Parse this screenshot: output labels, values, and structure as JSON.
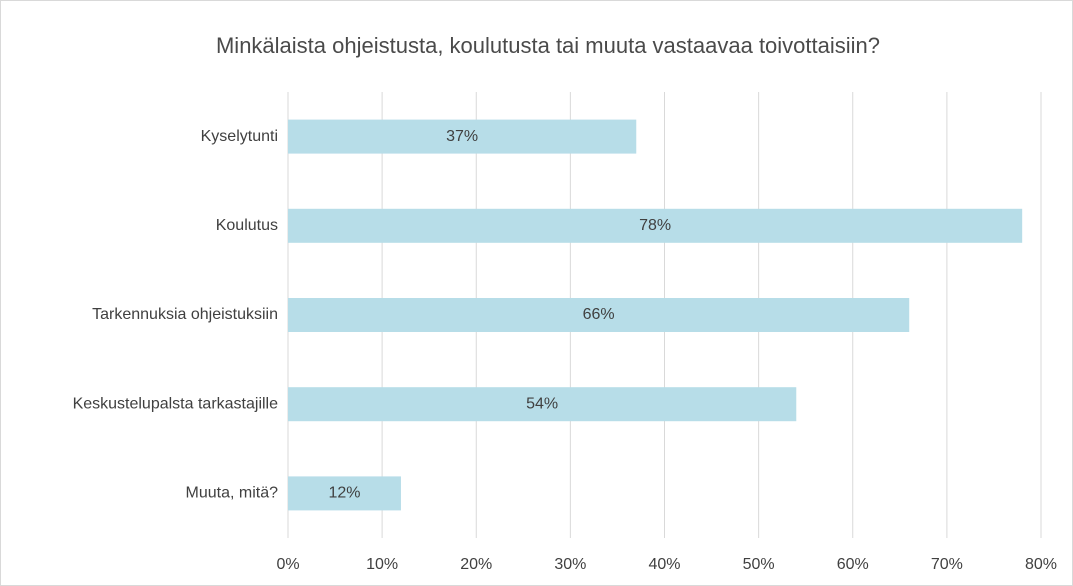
{
  "chart_data": {
    "type": "bar",
    "orientation": "horizontal",
    "title": "Minkälaista ohjeistusta, koulutusta tai muuta vastaavaa toivottaisiin?",
    "categories": [
      "Kyselytunti",
      "Koulutus",
      "Tarkennuksia ohjeistuksiin",
      "Keskustelupalsta tarkastajille",
      "Muuta, mitä?"
    ],
    "values": [
      37,
      78,
      66,
      54,
      12
    ],
    "value_labels": [
      "37%",
      "78%",
      "66%",
      "54%",
      "12%"
    ],
    "color": "#b7dde8",
    "xlim": [
      0,
      80
    ],
    "xticks": [
      {
        "value": 0,
        "label": "0%"
      },
      {
        "value": 10,
        "label": "10%"
      },
      {
        "value": 20,
        "label": "20%"
      },
      {
        "value": 30,
        "label": "30%"
      },
      {
        "value": 40,
        "label": "40%"
      },
      {
        "value": 50,
        "label": "50%"
      },
      {
        "value": 60,
        "label": "60%"
      },
      {
        "value": 70,
        "label": "70%"
      },
      {
        "value": 80,
        "label": "80%"
      }
    ],
    "grid": true
  }
}
